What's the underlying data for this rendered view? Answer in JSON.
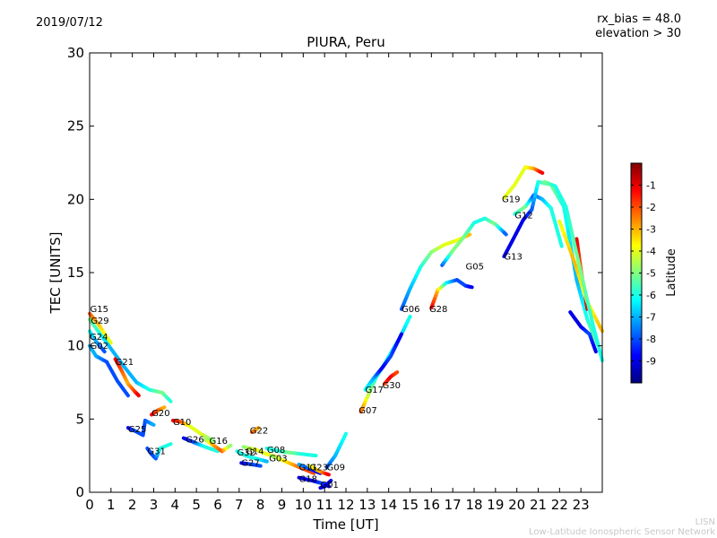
{
  "header": {
    "date": "2019/07/12",
    "rx_bias": "rx_bias = 48.0",
    "elevation": "elevation > 30",
    "title": "PIURA, Peru"
  },
  "watermark": {
    "line1": "LISN",
    "line2": "Low-Latitude Ionospheric Sensor Network"
  },
  "chart_data": {
    "type": "scatter",
    "title": "PIURA, Peru",
    "xlabel": "Time [UT]",
    "ylabel": "TEC [UNITS]",
    "xlim": [
      0,
      24
    ],
    "ylim": [
      0,
      30
    ],
    "xticks": [
      0,
      1,
      2,
      3,
      4,
      5,
      6,
      7,
      8,
      9,
      10,
      11,
      12,
      13,
      14,
      15,
      16,
      17,
      18,
      19,
      20,
      21,
      22,
      23
    ],
    "yticks": [
      0,
      5,
      10,
      15,
      20,
      25,
      30
    ],
    "grid": false,
    "colorbar": {
      "label": "Latitude",
      "range": [
        -10,
        0
      ],
      "ticks": [
        -9,
        -8,
        -7,
        -6,
        -5,
        -4,
        -3,
        -2,
        -1
      ],
      "colormap": "jet"
    },
    "series": [
      {
        "name": "G15",
        "label_at": [
          0.02,
          12.3
        ],
        "points": [
          [
            0.0,
            12.2,
            -2
          ],
          [
            0.4,
            11.5,
            -3
          ],
          [
            0.8,
            10.6,
            -4
          ],
          [
            1.0,
            10.2,
            -4
          ]
        ]
      },
      {
        "name": "G29",
        "label_at": [
          0.05,
          11.5
        ],
        "points": [
          [
            0.0,
            11.8,
            -5
          ],
          [
            0.5,
            10.8,
            -6
          ],
          [
            1.0,
            9.8,
            -7
          ],
          [
            1.6,
            8.6,
            -7
          ],
          [
            2.2,
            7.5,
            -7
          ],
          [
            2.8,
            7.0,
            -6
          ],
          [
            3.4,
            6.8,
            -5
          ],
          [
            3.8,
            6.2,
            -6
          ]
        ]
      },
      {
        "name": "G24",
        "label_at": [
          0.0,
          10.4
        ],
        "points": [
          [
            0.0,
            11.0,
            -6
          ],
          [
            0.3,
            10.3,
            -7
          ],
          [
            0.7,
            9.6,
            -8
          ]
        ]
      },
      {
        "name": "G02",
        "label_at": [
          0.02,
          9.8
        ],
        "points": [
          [
            0.0,
            10.0,
            -7
          ],
          [
            0.3,
            9.3,
            -7
          ],
          [
            0.8,
            8.9,
            -8
          ],
          [
            1.3,
            7.6,
            -8
          ],
          [
            1.8,
            6.6,
            -8
          ]
        ]
      },
      {
        "name": "G21",
        "label_at": [
          1.2,
          8.7
        ],
        "points": [
          [
            1.2,
            9.1,
            -1
          ],
          [
            1.5,
            8.3,
            -2
          ],
          [
            1.8,
            7.4,
            -3
          ],
          [
            2.1,
            6.9,
            -2
          ],
          [
            2.3,
            6.6,
            -1
          ]
        ]
      },
      {
        "name": "G20",
        "label_at": [
          2.9,
          5.2
        ],
        "points": [
          [
            2.9,
            5.3,
            -1
          ],
          [
            3.2,
            5.6,
            -2
          ],
          [
            3.5,
            5.8,
            -3
          ]
        ]
      },
      {
        "name": "G10",
        "label_at": [
          3.9,
          4.6
        ],
        "points": [
          [
            3.9,
            4.9,
            -1
          ],
          [
            4.3,
            4.8,
            -2
          ],
          [
            4.7,
            4.5,
            -4
          ],
          [
            5.2,
            4.0,
            -4
          ],
          [
            5.8,
            3.5,
            -5
          ]
        ]
      },
      {
        "name": "G25",
        "label_at": [
          1.8,
          4.1
        ],
        "points": [
          [
            1.8,
            4.4,
            -9
          ],
          [
            2.1,
            4.2,
            -8
          ],
          [
            2.5,
            3.9,
            -8
          ],
          [
            2.6,
            4.9,
            -8
          ],
          [
            3.0,
            4.6,
            -7
          ]
        ]
      },
      {
        "name": "G31",
        "label_at": [
          2.7,
          2.6
        ],
        "points": [
          [
            2.7,
            3.0,
            -8
          ],
          [
            2.9,
            2.6,
            -8
          ],
          [
            3.1,
            2.3,
            -8
          ],
          [
            3.3,
            3.0,
            -6
          ],
          [
            3.8,
            3.3,
            -6
          ]
        ]
      },
      {
        "name": "G26",
        "label_at": [
          4.5,
          3.4
        ],
        "points": [
          [
            4.4,
            3.7,
            -9
          ],
          [
            4.9,
            3.4,
            -8
          ],
          [
            5.4,
            3.1,
            -6
          ],
          [
            6.0,
            2.8,
            -6
          ]
        ]
      },
      {
        "name": "G16",
        "label_at": [
          5.6,
          3.3
        ],
        "points": [
          [
            5.4,
            3.6,
            -5
          ],
          [
            5.8,
            3.2,
            -3
          ],
          [
            6.2,
            2.8,
            -2
          ],
          [
            6.6,
            3.2,
            -5
          ]
        ]
      },
      {
        "name": "G22",
        "label_at": [
          7.5,
          4.0
        ],
        "points": [
          [
            7.6,
            4.1,
            -2
          ],
          [
            7.9,
            4.4,
            -3
          ]
        ]
      },
      {
        "name": "G32",
        "label_at": [
          6.9,
          2.5
        ],
        "points": [
          [
            6.9,
            2.8,
            -6
          ],
          [
            7.3,
            2.5,
            -6
          ],
          [
            7.8,
            2.3,
            -6
          ],
          [
            8.3,
            2.1,
            -7
          ]
        ]
      },
      {
        "name": "G14",
        "label_at": [
          7.3,
          2.6
        ],
        "points": [
          [
            7.2,
            3.1,
            -5
          ],
          [
            7.8,
            2.9,
            -4
          ],
          [
            8.3,
            2.6,
            -4
          ],
          [
            8.8,
            2.4,
            -3
          ]
        ]
      },
      {
        "name": "G27",
        "label_at": [
          7.1,
          1.8
        ],
        "points": [
          [
            7.1,
            2.0,
            -9
          ],
          [
            7.6,
            1.9,
            -8
          ],
          [
            8.0,
            1.8,
            -8
          ]
        ]
      },
      {
        "name": "G08",
        "label_at": [
          8.3,
          2.7
        ],
        "points": [
          [
            8.3,
            3.0,
            -6
          ],
          [
            8.9,
            2.8,
            -6
          ],
          [
            9.4,
            2.7,
            -5
          ],
          [
            10.0,
            2.6,
            -6
          ],
          [
            10.6,
            2.5,
            -6
          ]
        ]
      },
      {
        "name": "G03",
        "label_at": [
          8.4,
          2.1
        ],
        "points": [
          [
            8.5,
            2.5,
            -5
          ],
          [
            9.0,
            2.2,
            -4
          ],
          [
            9.5,
            1.9,
            -3
          ],
          [
            10.0,
            1.6,
            -2
          ],
          [
            10.5,
            1.3,
            -2
          ]
        ]
      },
      {
        "name": "G11",
        "label_at": [
          9.8,
          1.5
        ],
        "points": [
          [
            9.8,
            1.9,
            -7
          ],
          [
            10.3,
            1.6,
            -8
          ],
          [
            10.8,
            1.3,
            -9
          ]
        ]
      },
      {
        "name": "G23",
        "label_at": [
          10.3,
          1.5
        ],
        "points": [
          [
            10.3,
            1.8,
            -4
          ],
          [
            10.8,
            1.4,
            -3
          ],
          [
            11.2,
            1.2,
            -1
          ]
        ]
      },
      {
        "name": "G18",
        "label_at": [
          9.8,
          0.7
        ],
        "points": [
          [
            9.8,
            1.0,
            -9
          ],
          [
            10.4,
            0.8,
            -9
          ],
          [
            10.9,
            0.6,
            -8
          ],
          [
            11.2,
            0.4,
            -9
          ]
        ]
      },
      {
        "name": "G09",
        "label_at": [
          11.1,
          1.5
        ],
        "points": [
          [
            11.1,
            1.7,
            -8
          ],
          [
            11.5,
            2.5,
            -7
          ],
          [
            12.0,
            4.0,
            -6
          ]
        ]
      },
      {
        "name": "G01",
        "label_at": [
          10.8,
          0.3
        ],
        "points": [
          [
            10.8,
            0.3,
            -9
          ],
          [
            11.0,
            0.4,
            -9
          ],
          [
            11.3,
            0.8,
            -9
          ]
        ]
      },
      {
        "name": "G07",
        "label_at": [
          12.6,
          5.4
        ],
        "points": [
          [
            12.7,
            5.5,
            -2
          ],
          [
            13.0,
            6.5,
            -4
          ],
          [
            13.4,
            7.8,
            -6
          ],
          [
            13.9,
            9.0,
            -6
          ],
          [
            14.5,
            10.5,
            -7
          ],
          [
            15.0,
            12.0,
            -6
          ]
        ]
      },
      {
        "name": "G17",
        "label_at": [
          12.9,
          6.8
        ],
        "points": [
          [
            12.9,
            7.0,
            -6
          ],
          [
            13.3,
            7.8,
            -7
          ],
          [
            13.7,
            8.5,
            -9
          ],
          [
            14.1,
            9.3,
            -8
          ],
          [
            14.6,
            10.8,
            -9
          ]
        ]
      },
      {
        "name": "G30",
        "label_at": [
          13.7,
          7.1
        ],
        "points": [
          [
            13.8,
            7.4,
            -2
          ],
          [
            14.1,
            7.9,
            -1
          ],
          [
            14.4,
            8.2,
            -2
          ]
        ]
      },
      {
        "name": "G06",
        "label_at": [
          14.6,
          12.3
        ],
        "points": [
          [
            14.6,
            12.5,
            -8
          ],
          [
            15.0,
            13.9,
            -7
          ],
          [
            15.5,
            15.4,
            -6
          ],
          [
            16.0,
            16.4,
            -5
          ],
          [
            16.6,
            16.9,
            -4
          ],
          [
            17.2,
            17.2,
            -4
          ],
          [
            17.8,
            17.6,
            -3
          ]
        ]
      },
      {
        "name": "G28",
        "label_at": [
          15.9,
          12.3
        ],
        "points": [
          [
            16.0,
            12.6,
            -1
          ],
          [
            16.3,
            13.8,
            -3
          ],
          [
            16.7,
            14.3,
            -6
          ],
          [
            17.2,
            14.5,
            -8
          ],
          [
            17.6,
            14.1,
            -8
          ],
          [
            17.9,
            14.0,
            -9
          ]
        ]
      },
      {
        "name": "G05",
        "label_at": [
          17.6,
          15.2
        ],
        "points": [
          [
            16.5,
            15.5,
            -8
          ],
          [
            17.0,
            16.5,
            -5
          ],
          [
            17.5,
            17.4,
            -5
          ],
          [
            18.0,
            18.4,
            -6
          ],
          [
            18.5,
            18.7,
            -6
          ],
          [
            19.0,
            18.3,
            -5
          ],
          [
            19.5,
            17.6,
            -8
          ]
        ]
      },
      {
        "name": "G19",
        "label_at": [
          19.3,
          19.8
        ],
        "points": [
          [
            19.4,
            20.1,
            -4
          ],
          [
            19.9,
            21.0,
            -4
          ],
          [
            20.4,
            22.2,
            -4
          ],
          [
            20.8,
            22.1,
            -3
          ],
          [
            21.2,
            21.8,
            -1
          ]
        ]
      },
      {
        "name": "G12",
        "label_at": [
          19.9,
          18.7
        ],
        "points": [
          [
            19.9,
            19.0,
            -6
          ],
          [
            20.4,
            19.5,
            -5
          ],
          [
            20.8,
            20.3,
            -8
          ],
          [
            21.2,
            20.0,
            -7
          ],
          [
            21.6,
            19.4,
            -6
          ],
          [
            22.1,
            16.8,
            -6
          ]
        ]
      },
      {
        "name": "G13",
        "label_at": [
          19.4,
          15.9
        ],
        "points": [
          [
            19.4,
            16.1,
            -9
          ],
          [
            19.8,
            17.2,
            -9
          ],
          [
            20.3,
            18.6,
            -9
          ],
          [
            20.7,
            19.3,
            -8
          ],
          [
            21.0,
            21.2,
            -6
          ],
          [
            21.6,
            21.0,
            -5
          ],
          [
            22.2,
            19.5,
            -6
          ],
          [
            22.8,
            14.5,
            -7
          ],
          [
            23.3,
            11.8,
            -6
          ],
          [
            23.8,
            10.0,
            -5
          ]
        ]
      },
      {
        "name": "",
        "label_at": null,
        "points": [
          [
            22.8,
            17.3,
            -1
          ],
          [
            23.0,
            15.2,
            -2
          ],
          [
            23.3,
            12.5,
            -1
          ]
        ]
      },
      {
        "name": "",
        "label_at": null,
        "points": [
          [
            22.5,
            12.3,
            -9
          ],
          [
            23.0,
            11.3,
            -9
          ],
          [
            23.4,
            10.8,
            -8
          ],
          [
            23.7,
            9.6,
            -9
          ]
        ]
      },
      {
        "name": "",
        "label_at": null,
        "points": [
          [
            22.0,
            18.5,
            -4
          ],
          [
            22.7,
            15.7,
            -3
          ],
          [
            23.3,
            13.0,
            -4
          ],
          [
            24.0,
            11.0,
            -3
          ]
        ]
      },
      {
        "name": "",
        "label_at": null,
        "points": [
          [
            21.3,
            21.2,
            -5
          ],
          [
            21.8,
            20.9,
            -6
          ],
          [
            22.3,
            19.5,
            -6
          ],
          [
            23.0,
            15.0,
            -5
          ],
          [
            23.6,
            11.2,
            -6
          ],
          [
            24.0,
            9.0,
            -6
          ]
        ]
      }
    ]
  }
}
